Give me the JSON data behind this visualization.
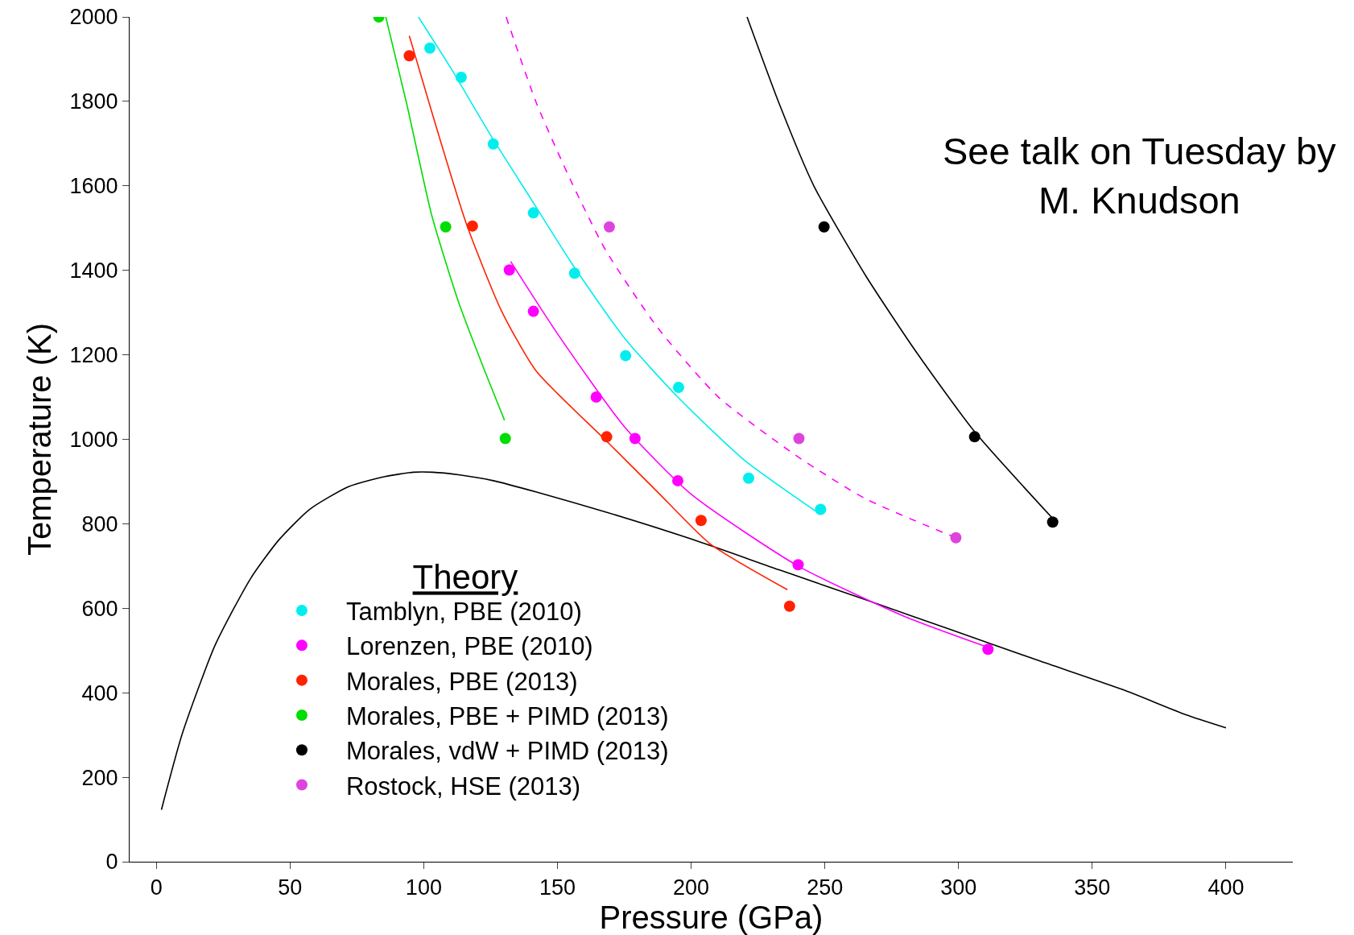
{
  "chart_data": {
    "type": "scatter",
    "xlabel": "Pressure (GPa)",
    "ylabel": "Temperature (K)",
    "legend_title": "Theory",
    "annotations": [
      "See talk on Tuesday by\nM. Knudson"
    ],
    "xlim": [
      -10,
      425
    ],
    "xticks": [
      0,
      50,
      100,
      150,
      200,
      250,
      300,
      350,
      400
    ],
    "ylim": [
      0,
      2000
    ],
    "yticks": [
      0,
      200,
      400,
      600,
      800,
      1000,
      1200,
      1400,
      1600,
      1800,
      2000
    ],
    "grid": false,
    "legend": "bottom left",
    "marker": "circle",
    "series": [
      {
        "type": "line",
        "marker": "none",
        "color": "#000000",
        "line_style": "solid",
        "x": [
          1.9,
          9.7,
          22,
          35.3,
          45.7,
          57.3,
          71.9,
          85.5,
          96.2,
          103.3,
          113,
          126,
          142.2,
          168,
          200.5,
          232.9,
          265.3,
          297.7,
          330,
          362.4,
          385,
          400
        ],
        "values": [
          123,
          303,
          513,
          671,
          761,
          834,
          888,
          912,
          922,
          922,
          916,
          902,
          875,
          828,
          763,
          691,
          620,
          548,
          476,
          405,
          348,
          317
        ]
      },
      {
        "type": "line",
        "marker": "none",
        "color": "#00eeee",
        "line_style": "solid",
        "x": [
          98,
          110,
          125,
          140,
          155,
          175,
          195,
          220,
          246.5
        ],
        "values": [
          2000,
          1880,
          1720,
          1570,
          1420,
          1240,
          1100,
          950,
          830
        ]
      },
      {
        "type": "line",
        "marker": "none",
        "color": "#ff00ff",
        "line_style": "solid",
        "x": [
          132.5,
          150,
          175,
          200,
          240,
          280,
          313
        ],
        "values": [
          1421,
          1250,
          1030,
          870,
          700,
          580,
          503
        ]
      },
      {
        "type": "line",
        "marker": "none",
        "color": "#ff2200",
        "line_style": "solid",
        "x": [
          94.6,
          103,
          116,
          129,
          142,
          168,
          187.5,
          207,
          236
        ],
        "values": [
          1955,
          1775,
          1509,
          1305,
          1162,
          998,
          875,
          753,
          644
        ]
      },
      {
        "type": "line",
        "marker": "none",
        "color": "#00dd00",
        "line_style": "solid",
        "x": [
          85.8,
          93.6,
          103,
          113,
          122.8,
          130.2
        ],
        "values": [
          2000,
          1795,
          1530,
          1325,
          1162,
          1045
        ]
      },
      {
        "type": "line",
        "marker": "none",
        "color": "#000000",
        "line_style": "solid",
        "x": [
          220.9,
          232.9,
          245.8,
          265.3,
          284.7,
          306,
          335
        ],
        "values": [
          2000,
          1795,
          1601,
          1387,
          1202,
          1018,
          814
        ]
      },
      {
        "type": "line",
        "marker": "none",
        "color": "#ff00ff",
        "line_style": "dashed",
        "x": [
          130.8,
          142.2,
          155.1,
          168,
          187.5,
          210.2,
          240.3,
          265.3,
          299
        ],
        "values": [
          2000,
          1795,
          1611,
          1448,
          1264,
          1100,
          957,
          859,
          767
        ]
      },
      {
        "name": "Tamblyn, PBE (2010)",
        "color": "#00eeee",
        "x": [
          102.3,
          114,
          126,
          141,
          156.4,
          175.5,
          195.3,
          221.5,
          248.4
        ],
        "values": [
          1926,
          1857,
          1699,
          1536,
          1393,
          1198,
          1123,
          908,
          834
        ]
      },
      {
        "name": "Lorenzen, PBE (2010)",
        "color": "#ff00ff",
        "x": [
          132,
          141,
          164.5,
          179,
          195,
          240,
          311
        ],
        "values": [
          1401,
          1303,
          1100,
          1002,
          902,
          703,
          503
        ]
      },
      {
        "name": "Morales, PBE (2013)",
        "color": "#ff2200",
        "x": [
          94.6,
          118.2,
          168.4,
          203.7,
          236.8
        ],
        "values": [
          1908,
          1505,
          1006,
          808,
          605
        ]
      },
      {
        "name": "Morales, PBE + PIMD (2013)",
        "color": "#00dd00",
        "x": [
          83.2,
          108.2,
          130.5
        ],
        "values": [
          2000,
          1503,
          1002
        ]
      },
      {
        "name": "Morales, vdW + PIMD (2013)",
        "color": "#000000",
        "x": [
          249.7,
          306,
          335.2
        ],
        "values": [
          1503,
          1006,
          804
        ]
      },
      {
        "name": "Rostock, HSE (2013)",
        "color": "#dd44dd",
        "x": [
          169.4,
          240.3,
          299
        ],
        "values": [
          1503,
          1002,
          767
        ]
      }
    ]
  }
}
